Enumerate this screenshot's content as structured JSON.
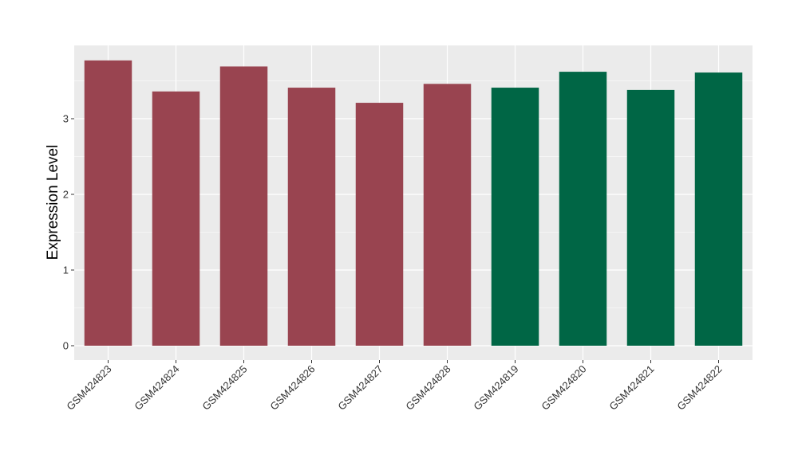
{
  "chart_data": {
    "type": "bar",
    "title": "",
    "xlabel": "",
    "ylabel": "Expression Level",
    "categories": [
      "GSM424823",
      "GSM424824",
      "GSM424825",
      "GSM424826",
      "GSM424827",
      "GSM424828",
      "GSM424819",
      "GSM424820",
      "GSM424821",
      "GSM424822"
    ],
    "values": [
      3.77,
      3.36,
      3.69,
      3.41,
      3.21,
      3.46,
      3.41,
      3.62,
      3.38,
      3.61
    ],
    "bar_colors": [
      "#994450",
      "#994450",
      "#994450",
      "#994450",
      "#994450",
      "#994450",
      "#006645",
      "#006645",
      "#006645",
      "#006645"
    ],
    "ylim": [
      -0.18,
      3.9
    ],
    "yticks": [
      0,
      1,
      2,
      3
    ],
    "grid": true,
    "panel_background": "#EBEBEB",
    "grid_color": "#FFFFFF"
  }
}
